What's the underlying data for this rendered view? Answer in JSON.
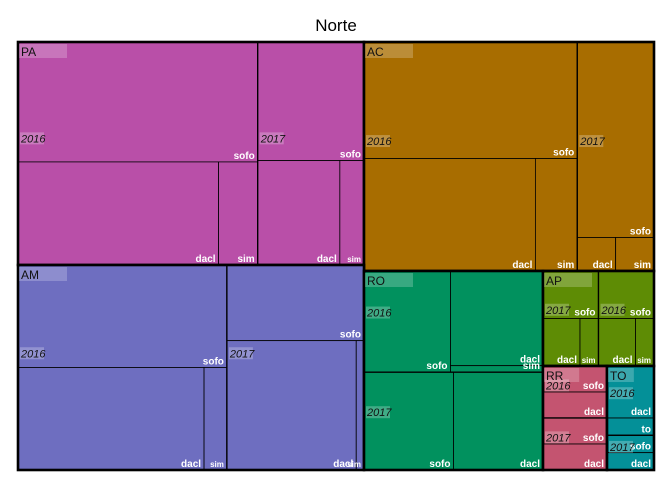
{
  "chart_data": {
    "type": "treemap",
    "title": "Norte",
    "hierarchy": [
      "state",
      "year",
      "type"
    ],
    "states": [
      {
        "name": "PA",
        "color": "#b94fa8",
        "years": [
          {
            "name": "2016",
            "items": [
              {
                "name": "sofo",
                "value": 57
              },
              {
                "name": "dacl",
                "value": 41
              },
              {
                "name": "sim",
                "value": 8
              }
            ]
          },
          {
            "name": "2017",
            "items": [
              {
                "name": "sofo",
                "value": 25
              },
              {
                "name": "dacl",
                "value": 17
              },
              {
                "name": "sim",
                "value": 5
              }
            ]
          }
        ]
      },
      {
        "name": "AC",
        "color": "#a86d00",
        "years": [
          {
            "name": "2016",
            "items": [
              {
                "name": "sofo",
                "value": 58
              },
              {
                "name": "dacl",
                "value": 45
              },
              {
                "name": "sim",
                "value": 11
              }
            ]
          },
          {
            "name": "2017",
            "items": [
              {
                "name": "sofo",
                "value": 35
              },
              {
                "name": "dacl",
                "value": 3
              },
              {
                "name": "sim",
                "value": 3
              }
            ]
          }
        ]
      },
      {
        "name": "AM",
        "color": "#6e6ec0",
        "years": [
          {
            "name": "2016",
            "items": [
              {
                "name": "sofo",
                "value": 64
              },
              {
                "name": "dacl",
                "value": 57
              },
              {
                "name": "sim",
                "value": 7
              }
            ]
          },
          {
            "name": "2017",
            "items": [
              {
                "name": "sofo",
                "value": 31
              },
              {
                "name": "dacl",
                "value": 50
              },
              {
                "name": "sim",
                "value": 3
              }
            ]
          }
        ]
      },
      {
        "name": "RO",
        "color": "#01915e",
        "years": [
          {
            "name": "2016",
            "items": [
              {
                "name": "sofo",
                "value": 29
              },
              {
                "name": "dacl",
                "value": 29
              },
              {
                "name": "sim",
                "value": 2
              }
            ]
          },
          {
            "name": "2017",
            "items": [
              {
                "name": "sofo",
                "value": 29
              },
              {
                "name": "dacl",
                "value": 29
              }
            ]
          }
        ]
      },
      {
        "name": "AP",
        "color": "#5e8c05",
        "years": [
          {
            "name": "2017",
            "items": [
              {
                "name": "sofo",
                "value": 3
              },
              {
                "name": "dacl",
                "value": 2
              },
              {
                "name": "sim",
                "value": 1
              }
            ]
          },
          {
            "name": "2016",
            "items": [
              {
                "name": "sofo",
                "value": 3
              },
              {
                "name": "dacl",
                "value": 2
              },
              {
                "name": "sim",
                "value": 1
              }
            ]
          }
        ]
      },
      {
        "name": "RR",
        "color": "#c45470",
        "years": [
          {
            "name": "2016",
            "items": [
              {
                "name": "sofo",
                "value": 2
              },
              {
                "name": "dacl",
                "value": 2
              }
            ]
          },
          {
            "name": "2017",
            "items": [
              {
                "name": "sofo",
                "value": 2
              },
              {
                "name": "dacl",
                "value": 2
              }
            ]
          }
        ]
      },
      {
        "name": "TO",
        "color": "#049098",
        "years": [
          {
            "name": "2016",
            "items": [
              {
                "name": "dacl",
                "value": 3
              },
              {
                "name": "to",
                "value": 1
              }
            ]
          },
          {
            "name": "2017",
            "items": [
              {
                "name": "sofo",
                "value": 1
              },
              {
                "name": "dacl",
                "value": 1
              }
            ]
          }
        ]
      }
    ]
  }
}
